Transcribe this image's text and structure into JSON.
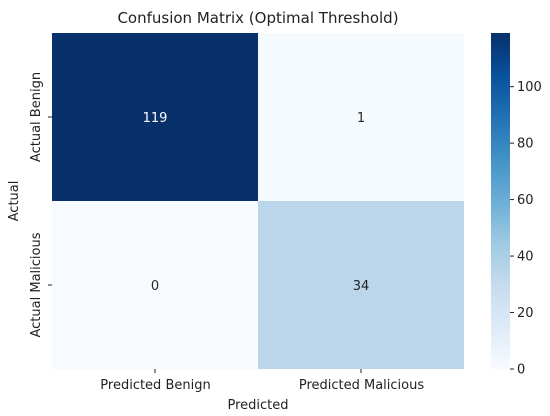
{
  "chart_data": {
    "type": "heatmap",
    "title": "Confusion Matrix (Optimal Threshold)",
    "xlabel": "Predicted",
    "ylabel": "Actual",
    "x_categories": [
      "Predicted Benign",
      "Predicted Malicious"
    ],
    "y_categories": [
      "Actual Benign",
      "Actual Malicious"
    ],
    "values": [
      [
        119,
        1
      ],
      [
        0,
        34
      ]
    ],
    "annotations": [
      "119",
      "1",
      "0",
      "34"
    ],
    "colormap": "Blues",
    "colorbar": {
      "min": 0,
      "max": 119,
      "ticks": [
        "0",
        "20",
        "40",
        "60",
        "80",
        "100"
      ],
      "tick_values": [
        0,
        20,
        40,
        60,
        80,
        100
      ]
    },
    "grid": false
  }
}
